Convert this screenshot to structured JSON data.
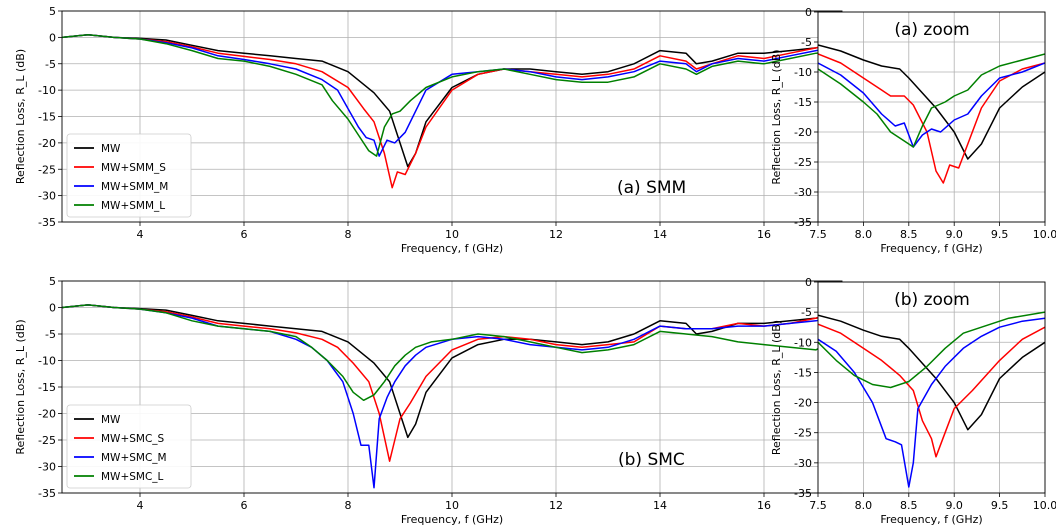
{
  "chart_data": [
    {
      "id": "smm-main",
      "type": "line",
      "annotation": "(a) SMM",
      "xlabel": "Frequency, f (GHz)",
      "ylabel": "Reflection Loss, R_L (dB)",
      "xlim": [
        2.5,
        17.5
      ],
      "ylim": [
        -35,
        5
      ],
      "xticks": [
        4,
        6,
        8,
        10,
        12,
        14,
        16
      ],
      "yticks": [
        5,
        0,
        -5,
        -10,
        -15,
        -20,
        -25,
        -30,
        -35
      ],
      "grid": true,
      "legend": "lower-left",
      "series": [
        {
          "name": "MW",
          "color": "#000000",
          "x": [
            2.5,
            3.0,
            3.5,
            4.0,
            4.5,
            5.0,
            5.5,
            6.0,
            6.5,
            7.0,
            7.5,
            8.0,
            8.5,
            8.8,
            9.0,
            9.15,
            9.3,
            9.5,
            10.0,
            10.5,
            11.0,
            11.5,
            12.0,
            12.5,
            13.0,
            13.5,
            14.0,
            14.5,
            14.7,
            15.0,
            15.5,
            16.0,
            16.5,
            17.0,
            17.5
          ],
          "y": [
            0,
            0.5,
            0,
            -0.2,
            -0.5,
            -1.5,
            -2.5,
            -3.0,
            -3.5,
            -4.0,
            -4.5,
            -6.5,
            -10.5,
            -14,
            -20,
            -24.5,
            -22,
            -16,
            -9.5,
            -7,
            -6,
            -6,
            -6.5,
            -7,
            -6.5,
            -5,
            -2.5,
            -3,
            -5,
            -4.5,
            -3,
            -3,
            -2.5,
            -2,
            -1
          ]
        },
        {
          "name": "MW+SMM_S",
          "color": "#ff0000",
          "x": [
            2.5,
            3.0,
            3.5,
            4.0,
            4.5,
            5.0,
            5.5,
            6.0,
            6.5,
            7.0,
            7.5,
            8.0,
            8.3,
            8.5,
            8.7,
            8.85,
            8.95,
            9.1,
            9.3,
            9.5,
            10.0,
            10.5,
            11.0,
            11.5,
            12.0,
            12.5,
            13.0,
            13.5,
            14.0,
            14.5,
            14.7,
            15.0,
            15.5,
            16.0,
            16.5,
            17.0,
            17.5
          ],
          "y": [
            0,
            0.5,
            0,
            -0.3,
            -0.8,
            -1.8,
            -3.0,
            -3.6,
            -4.2,
            -5.0,
            -6.5,
            -9.5,
            -13.5,
            -16,
            -22,
            -28.5,
            -25.5,
            -26,
            -22,
            -17,
            -10,
            -7,
            -6,
            -6.5,
            -7,
            -7.5,
            -7,
            -6,
            -3.5,
            -4.5,
            -6,
            -5,
            -3.5,
            -4,
            -3,
            -2,
            -1
          ]
        },
        {
          "name": "MW+SMM_M",
          "color": "#0000ff",
          "x": [
            2.5,
            3.0,
            3.5,
            4.0,
            4.5,
            5.0,
            5.5,
            6.0,
            6.5,
            7.0,
            7.5,
            7.8,
            8.0,
            8.2,
            8.35,
            8.5,
            8.6,
            8.75,
            8.9,
            9.1,
            9.3,
            9.5,
            10.0,
            10.5,
            11.0,
            11.5,
            12.0,
            12.5,
            13.0,
            13.5,
            14.0,
            14.5,
            14.7,
            15.0,
            15.5,
            16.0,
            16.5,
            17.0,
            17.5
          ],
          "y": [
            0,
            0.5,
            0,
            -0.3,
            -1,
            -2,
            -3.5,
            -4.2,
            -5,
            -6,
            -8,
            -10,
            -13.5,
            -17,
            -19,
            -19.5,
            -22.5,
            -19.5,
            -20,
            -18,
            -14,
            -10,
            -7,
            -6.5,
            -6,
            -6.5,
            -7.5,
            -8,
            -7.5,
            -6.5,
            -4.5,
            -5,
            -6.5,
            -5,
            -4,
            -4.5,
            -3.5,
            -2.5,
            -1.5
          ]
        },
        {
          "name": "MW+SMM_L",
          "color": "#008000",
          "x": [
            2.5,
            3.0,
            3.5,
            4.0,
            4.5,
            5.0,
            5.5,
            6.0,
            6.5,
            7.0,
            7.5,
            7.7,
            8.0,
            8.2,
            8.4,
            8.55,
            8.7,
            8.85,
            9.0,
            9.2,
            9.5,
            10.0,
            10.5,
            11.0,
            11.5,
            12.0,
            12.5,
            13.0,
            13.5,
            14.0,
            14.5,
            14.7,
            15.0,
            15.5,
            16.0,
            16.5,
            17.0,
            17.5
          ],
          "y": [
            0,
            0.5,
            0,
            -0.3,
            -1.2,
            -2.5,
            -4,
            -4.5,
            -5.5,
            -7,
            -9,
            -12,
            -15.5,
            -18.5,
            -21.5,
            -22.5,
            -17,
            -14.5,
            -14,
            -12,
            -9.5,
            -7.5,
            -6.5,
            -6,
            -7,
            -8,
            -8.5,
            -8.5,
            -7.5,
            -5,
            -6,
            -7,
            -5.5,
            -4.5,
            -5,
            -4,
            -3,
            -2.5
          ]
        }
      ]
    },
    {
      "id": "smm-zoom",
      "type": "line",
      "annotation": "(a) zoom",
      "xlabel": "Frequency, f (GHz)",
      "ylabel": "Reflection Loss, R_L (dB)",
      "xlim": [
        7.5,
        10.0
      ],
      "ylim": [
        -35,
        0
      ],
      "xticks": [
        "7.5",
        "8.0",
        "8.5",
        "9.0",
        "9.5",
        "10.0"
      ],
      "yticks": [
        0,
        -5,
        -10,
        -15,
        -20,
        -25,
        -30,
        -35
      ],
      "grid": true,
      "series": [
        {
          "name": "MW",
          "color": "#000000",
          "x": [
            7.5,
            7.75,
            8.0,
            8.2,
            8.4,
            8.5,
            8.65,
            8.8,
            9.0,
            9.15,
            9.3,
            9.5,
            9.75,
            10.0
          ],
          "y": [
            -5.5,
            -6.5,
            -8,
            -9,
            -9.5,
            -11,
            -13.5,
            -16,
            -20,
            -24.5,
            -22,
            -16,
            -12.5,
            -10
          ]
        },
        {
          "name": "MW+SMM_S",
          "color": "#ff0000",
          "x": [
            7.5,
            7.75,
            8.0,
            8.2,
            8.3,
            8.45,
            8.55,
            8.7,
            8.8,
            8.88,
            8.95,
            9.05,
            9.15,
            9.3,
            9.5,
            9.75,
            10.0
          ],
          "y": [
            -7,
            -8.5,
            -11,
            -13,
            -14,
            -14,
            -15.5,
            -20,
            -26.5,
            -28.5,
            -25.5,
            -26,
            -22,
            -16,
            -11.5,
            -9.5,
            -8.5
          ]
        },
        {
          "name": "MW+SMM_M",
          "color": "#0000ff",
          "x": [
            7.5,
            7.75,
            8.0,
            8.2,
            8.35,
            8.45,
            8.55,
            8.65,
            8.75,
            8.85,
            9.0,
            9.15,
            9.3,
            9.5,
            9.75,
            10.0
          ],
          "y": [
            -8.5,
            -10.5,
            -13.5,
            -17,
            -19,
            -18.5,
            -22.5,
            -20.5,
            -19.5,
            -20,
            -18,
            -17,
            -14,
            -11,
            -10,
            -8.5
          ]
        },
        {
          "name": "MW+SMM_L",
          "color": "#008000",
          "x": [
            7.5,
            7.75,
            8.0,
            8.15,
            8.3,
            8.45,
            8.55,
            8.65,
            8.75,
            8.9,
            9.0,
            9.15,
            9.3,
            9.5,
            9.75,
            10.0
          ],
          "y": [
            -9.5,
            -12,
            -15,
            -17,
            -20,
            -21.5,
            -22.5,
            -19,
            -16,
            -15,
            -14,
            -13,
            -10.5,
            -9,
            -8,
            -7
          ]
        }
      ]
    },
    {
      "id": "smc-main",
      "type": "line",
      "annotation": "(b) SMC",
      "xlabel": "Frequency, f (GHz)",
      "ylabel": "Reflection Loss, R_L (dB)",
      "xlim": [
        2.5,
        17.5
      ],
      "ylim": [
        -35,
        5
      ],
      "xticks": [
        4,
        6,
        8,
        10,
        12,
        14,
        16
      ],
      "yticks": [
        5,
        0,
        -5,
        -10,
        -15,
        -20,
        -25,
        -30,
        -35
      ],
      "grid": true,
      "legend": "lower-left",
      "series": [
        {
          "name": "MW",
          "color": "#000000",
          "x": [
            2.5,
            3.0,
            3.5,
            4.0,
            4.5,
            5.0,
            5.5,
            6.0,
            6.5,
            7.0,
            7.5,
            8.0,
            8.5,
            8.8,
            9.0,
            9.15,
            9.3,
            9.5,
            10.0,
            10.5,
            11.0,
            11.5,
            12.0,
            12.5,
            13.0,
            13.5,
            14.0,
            14.5,
            14.7,
            15.0,
            15.5,
            16.0,
            16.5,
            17.0,
            17.5
          ],
          "y": [
            0,
            0.5,
            0,
            -0.2,
            -0.5,
            -1.5,
            -2.5,
            -3,
            -3.5,
            -4,
            -4.5,
            -6.5,
            -10.5,
            -14,
            -20,
            -24.5,
            -22,
            -16,
            -9.5,
            -7,
            -6,
            -6,
            -6.5,
            -7,
            -6.5,
            -5,
            -2.5,
            -3,
            -5,
            -4.5,
            -3,
            -3,
            -2.5,
            -2,
            -1
          ]
        },
        {
          "name": "MW+SMC_S",
          "color": "#ff0000",
          "x": [
            2.5,
            3.0,
            3.5,
            4.0,
            4.5,
            5.0,
            5.5,
            6.0,
            6.5,
            7.0,
            7.5,
            7.8,
            8.1,
            8.4,
            8.6,
            8.8,
            8.9,
            9.0,
            9.2,
            9.5,
            10.0,
            10.5,
            11.0,
            11.5,
            12.0,
            12.5,
            13.0,
            13.5,
            14.0,
            14.5,
            15.0,
            15.5,
            16.0,
            16.5,
            17.0,
            17.5
          ],
          "y": [
            0,
            0.5,
            0,
            -0.3,
            -0.8,
            -1.8,
            -3,
            -3.5,
            -4,
            -4.8,
            -6,
            -7.5,
            -10.5,
            -14,
            -20,
            -29,
            -25,
            -21,
            -18,
            -13,
            -8,
            -6,
            -5.5,
            -6,
            -7,
            -7.5,
            -7,
            -6.5,
            -3.5,
            -4,
            -4,
            -3,
            -3.5,
            -3,
            -2,
            -1
          ]
        },
        {
          "name": "MW+SMC_M",
          "color": "#0000ff",
          "x": [
            2.5,
            3.0,
            3.5,
            4.0,
            4.5,
            5.0,
            5.5,
            6.0,
            6.5,
            7.0,
            7.3,
            7.6,
            7.9,
            8.1,
            8.25,
            8.4,
            8.5,
            8.6,
            8.75,
            8.9,
            9.1,
            9.3,
            9.5,
            10.0,
            10.5,
            11.0,
            11.5,
            12.0,
            12.5,
            13.0,
            13.5,
            14.0,
            14.5,
            15.0,
            15.5,
            16.0,
            16.5,
            17.0,
            17.5
          ],
          "y": [
            0,
            0.5,
            0,
            -0.3,
            -1,
            -2,
            -3.5,
            -4,
            -4.5,
            -6,
            -7.5,
            -10,
            -14,
            -20,
            -26,
            -26,
            -34,
            -21,
            -17,
            -14,
            -11,
            -9,
            -7.5,
            -6,
            -5.5,
            -6,
            -7,
            -7.5,
            -8,
            -7.5,
            -6,
            -3.5,
            -4,
            -4,
            -3.5,
            -3.5,
            -3,
            -2.5,
            -1.5
          ]
        },
        {
          "name": "MW+SMC_L",
          "color": "#008000",
          "x": [
            2.5,
            3.0,
            3.5,
            4.0,
            4.5,
            5.0,
            5.5,
            6.0,
            6.5,
            7.0,
            7.3,
            7.6,
            7.9,
            8.1,
            8.3,
            8.5,
            8.7,
            8.9,
            9.1,
            9.3,
            9.6,
            10.0,
            10.5,
            11.0,
            11.5,
            12.0,
            12.5,
            13.0,
            13.5,
            14.0,
            14.5,
            15.0,
            15.5,
            16.0,
            16.5,
            17.0,
            17.5
          ],
          "y": [
            0,
            0.5,
            0,
            -0.3,
            -1,
            -2.5,
            -3.5,
            -4,
            -4.5,
            -5.5,
            -7.5,
            -10,
            -13,
            -16,
            -17.5,
            -16.5,
            -14,
            -11,
            -9,
            -7.5,
            -6.5,
            -6,
            -5,
            -5.5,
            -6.5,
            -7.5,
            -8.5,
            -8,
            -7,
            -4.5,
            -5,
            -5.5,
            -6.5,
            -7,
            -7.5,
            -8,
            -5
          ]
        }
      ]
    },
    {
      "id": "smc-zoom",
      "type": "line",
      "annotation": "(b) zoom",
      "xlabel": "Frequency, f (GHz)",
      "ylabel": "Reflection Loss, R_L (dB)",
      "xlim": [
        7.5,
        10.0
      ],
      "ylim": [
        -35,
        0
      ],
      "xticks": [
        "7.5",
        "8.0",
        "8.5",
        "9.0",
        "9.5",
        "10.0"
      ],
      "yticks": [
        0,
        -5,
        -10,
        -15,
        -20,
        -25,
        -30,
        -35
      ],
      "grid": true,
      "series": [
        {
          "name": "MW",
          "color": "#000000",
          "x": [
            7.5,
            7.75,
            8.0,
            8.2,
            8.4,
            8.5,
            8.65,
            8.8,
            9.0,
            9.15,
            9.3,
            9.5,
            9.75,
            10.0
          ],
          "y": [
            -5.5,
            -6.5,
            -8,
            -9,
            -9.5,
            -11,
            -13.5,
            -16,
            -20,
            -24.5,
            -22,
            -16,
            -12.5,
            -10
          ]
        },
        {
          "name": "MW+SMC_S",
          "color": "#ff0000",
          "x": [
            7.5,
            7.75,
            8.0,
            8.2,
            8.4,
            8.55,
            8.65,
            8.75,
            8.8,
            8.9,
            9.0,
            9.2,
            9.5,
            9.75,
            10.0
          ],
          "y": [
            -7,
            -8.5,
            -11,
            -13,
            -15.5,
            -18,
            -23,
            -26,
            -29,
            -25,
            -21,
            -18,
            -13,
            -9.5,
            -7.5
          ]
        },
        {
          "name": "MW+SMC_M",
          "color": "#0000ff",
          "x": [
            7.5,
            7.7,
            7.9,
            8.1,
            8.25,
            8.35,
            8.42,
            8.5,
            8.55,
            8.6,
            8.75,
            8.9,
            9.1,
            9.3,
            9.5,
            9.75,
            10.0
          ],
          "y": [
            -9.5,
            -11.5,
            -15,
            -20,
            -26,
            -26.5,
            -27,
            -34,
            -30,
            -21,
            -17,
            -14,
            -11,
            -9,
            -7.5,
            -6.5,
            -6
          ]
        },
        {
          "name": "MW+SMC_L",
          "color": "#008000",
          "x": [
            7.5,
            7.7,
            7.9,
            8.1,
            8.3,
            8.5,
            8.7,
            8.9,
            9.1,
            9.3,
            9.6,
            10.0
          ],
          "y": [
            -10,
            -13,
            -15.5,
            -17,
            -17.5,
            -16.5,
            -14,
            -11,
            -8.5,
            -7.5,
            -6,
            -5
          ]
        }
      ]
    }
  ]
}
